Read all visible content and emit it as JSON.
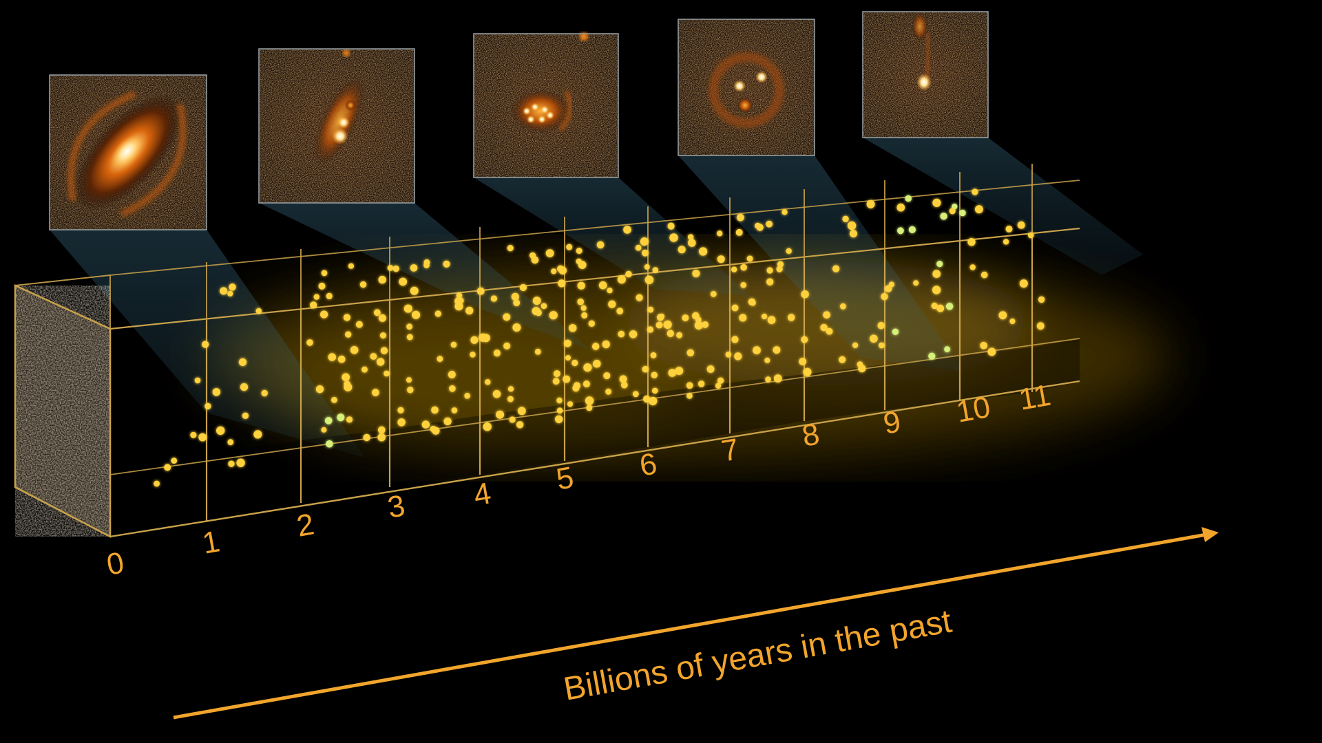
{
  "axis": {
    "title": "Billions of years in the past",
    "ticks": [
      "0",
      "1",
      "2",
      "3",
      "4",
      "5",
      "6",
      "7",
      "8",
      "9",
      "10",
      "11"
    ]
  },
  "insets": [
    {
      "name": "inset-galaxy-1",
      "description_icon": "spiral-galaxy-image"
    },
    {
      "name": "inset-galaxy-2",
      "description_icon": "spiral-galaxy-image"
    },
    {
      "name": "inset-galaxy-3",
      "description_icon": "clumpy-galaxy-image"
    },
    {
      "name": "inset-galaxy-4",
      "description_icon": "clumpy-galaxy-image"
    },
    {
      "name": "inset-galaxy-5",
      "description_icon": "compact-galaxy-image"
    }
  ],
  "colors": {
    "box_edge": "#c9a24a",
    "label": "#f2a52c",
    "dot": "#ffd23c",
    "dot_green": "#d6f07a",
    "beam": "#3f7a96",
    "galaxy_glow": "#ff8a12"
  }
}
